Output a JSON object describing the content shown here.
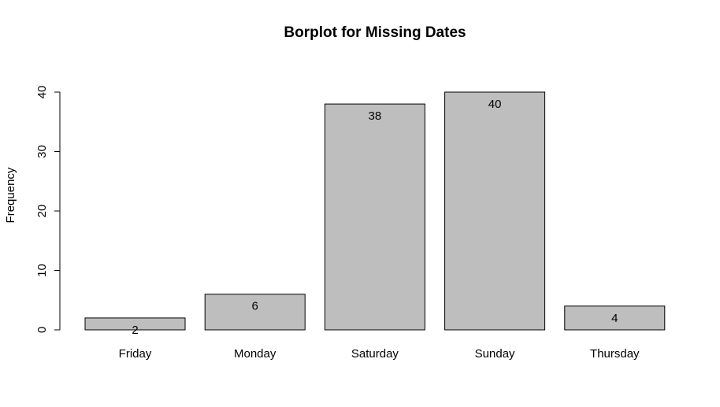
{
  "chart_data": {
    "type": "bar",
    "title": "Borplot for Missing Dates",
    "xlabel": "",
    "ylabel": "Frequency",
    "categories": [
      "Friday",
      "Monday",
      "Saturday",
      "Sunday",
      "Thursday"
    ],
    "values": [
      2,
      6,
      38,
      40,
      4
    ],
    "data_labels": [
      "2",
      "6",
      "38",
      "40",
      "4"
    ],
    "ylim": [
      0,
      40
    ],
    "yticks": [
      0,
      10,
      20,
      30,
      40
    ],
    "grid": false,
    "legend": "none",
    "bar_color": "#bebebe",
    "bar_edge_color": "#000000"
  }
}
